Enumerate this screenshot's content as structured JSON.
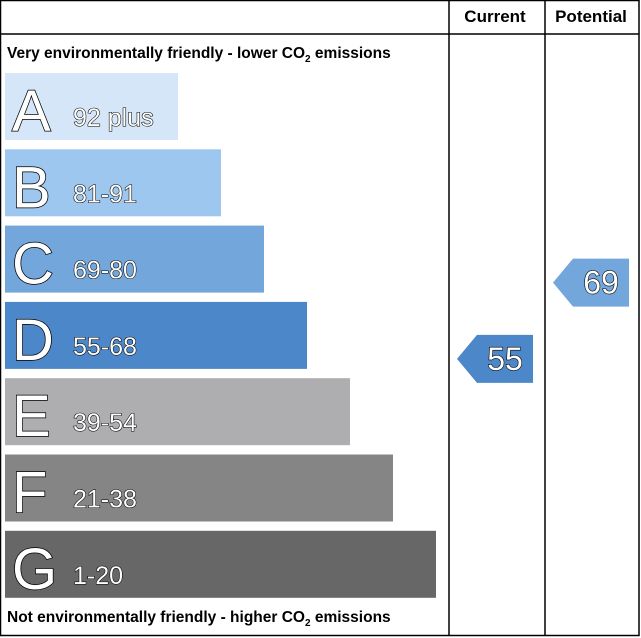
{
  "chart_data": {
    "type": "table",
    "columns": [
      "Current",
      "Potential"
    ],
    "top_caption": {
      "before": "Very environmentally friendly - lower CO",
      "subscript": "2",
      "after": " emissions"
    },
    "bottom_caption": {
      "before": "Not environmentally friendly - higher CO",
      "subscript": "2",
      "after": " emissions"
    },
    "bands": [
      {
        "letter": "A",
        "range": "92 plus",
        "min": 92,
        "max": 100,
        "color": "#d4e6f7"
      },
      {
        "letter": "B",
        "range": "81-91",
        "min": 81,
        "max": 91,
        "color": "#9dc7ee"
      },
      {
        "letter": "C",
        "range": "69-80",
        "min": 69,
        "max": 80,
        "color": "#73a7dc"
      },
      {
        "letter": "D",
        "range": "55-68",
        "min": 55,
        "max": 68,
        "color": "#4c88c9"
      },
      {
        "letter": "E",
        "range": "39-54",
        "min": 39,
        "max": 54,
        "color": "#aeadaf"
      },
      {
        "letter": "F",
        "range": "21-38",
        "min": 21,
        "max": 38,
        "color": "#858585"
      },
      {
        "letter": "G",
        "range": "1-20",
        "min": 1,
        "max": 20,
        "color": "#676767"
      }
    ],
    "current": {
      "value": 55,
      "label": "55",
      "band": "D",
      "color": "#4c88c9"
    },
    "potential": {
      "value": 69,
      "label": "69",
      "band": "C",
      "color": "#73a7dc"
    }
  }
}
